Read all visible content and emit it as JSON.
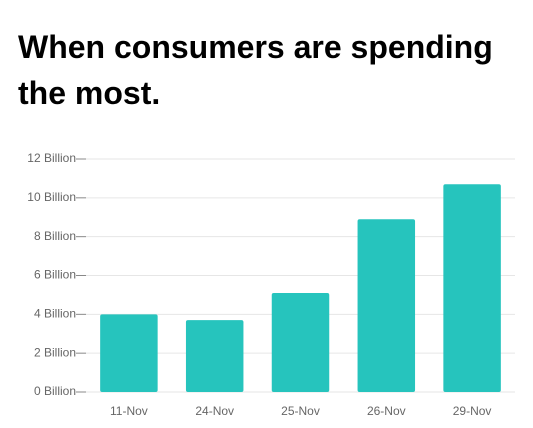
{
  "chart_data": {
    "type": "bar",
    "title": "When consumers are spending the most.",
    "categories": [
      "11-Nov",
      "24-Nov",
      "25-Nov",
      "26-Nov",
      "29-Nov"
    ],
    "values": [
      4.0,
      3.7,
      5.1,
      8.9,
      10.7
    ],
    "color": "#26c4bd",
    "ylim": [
      0,
      12
    ],
    "yticks": [
      {
        "value": 0,
        "label": "0 Billion"
      },
      {
        "value": 2,
        "label": "2 Billion"
      },
      {
        "value": 4,
        "label": "4 Billion"
      },
      {
        "value": 6,
        "label": "6 Billion"
      },
      {
        "value": 8,
        "label": "8 Billion"
      },
      {
        "value": 10,
        "label": "10 Billion"
      },
      {
        "value": 12,
        "label": "12 Billion"
      }
    ],
    "grid": true
  }
}
